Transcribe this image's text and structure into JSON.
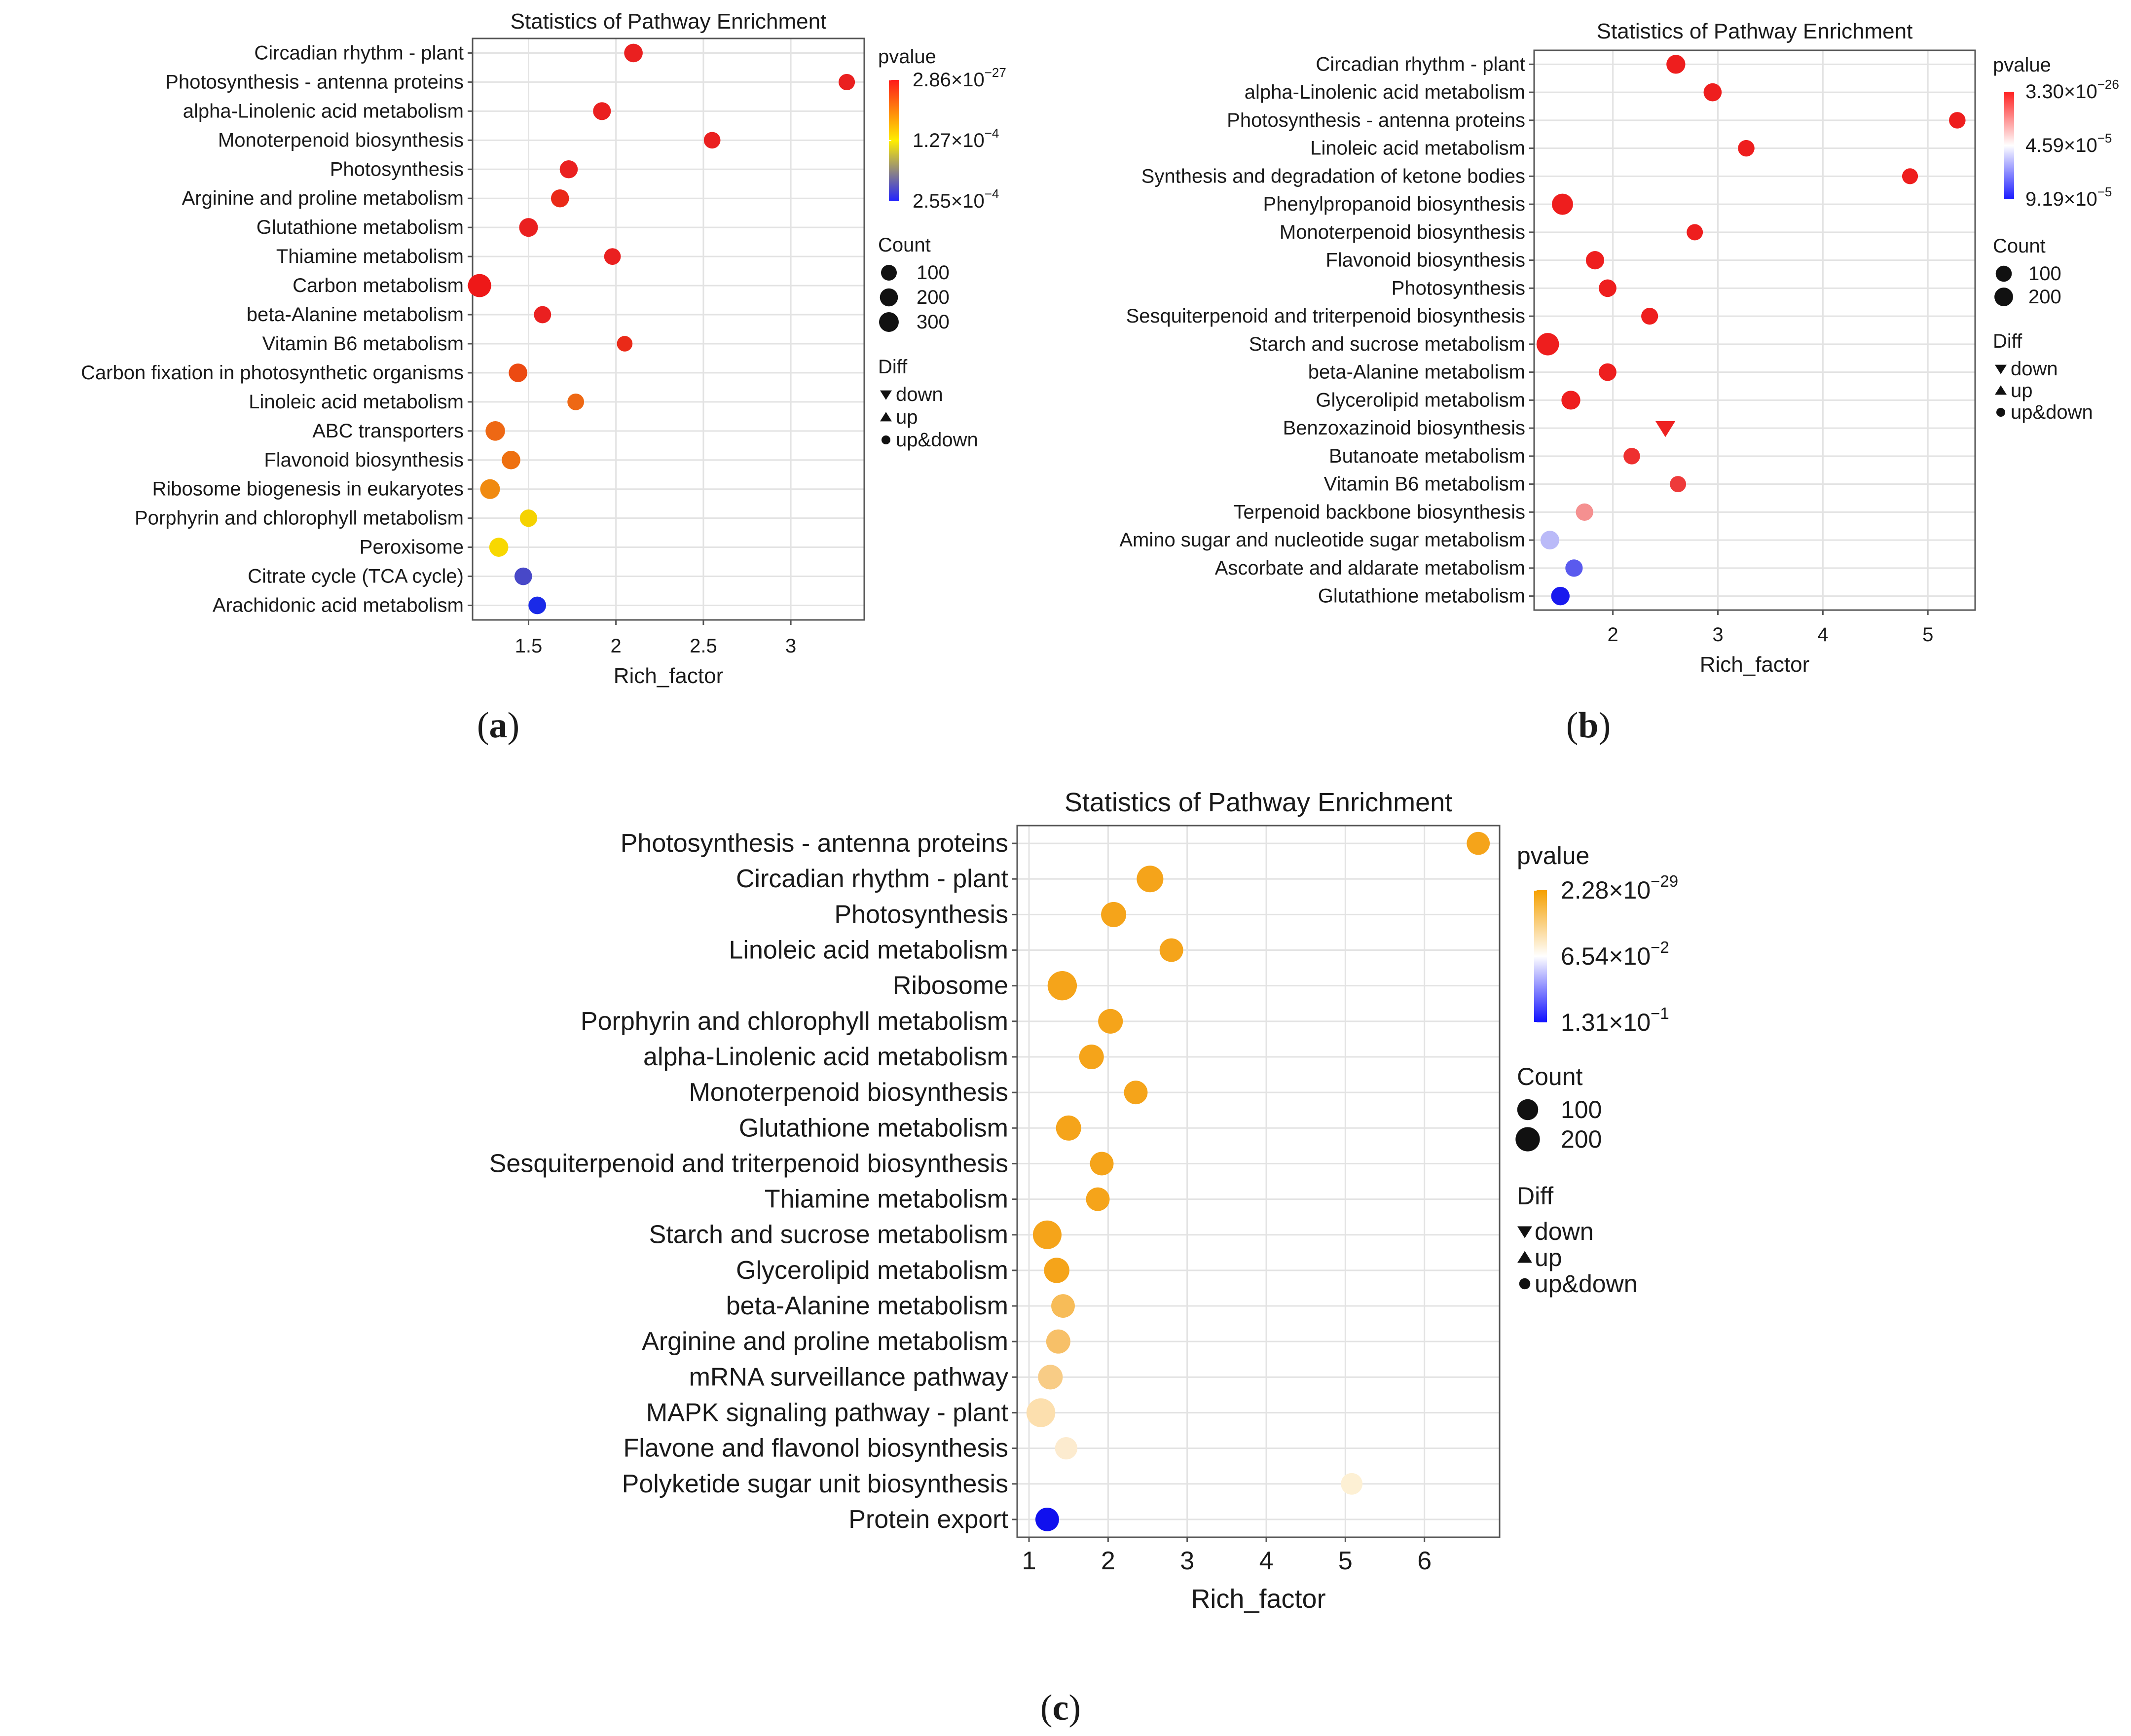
{
  "chart_data": [
    {
      "type": "scatter",
      "panel_caption": "a",
      "title": "Statistics of Pathway Enrichment",
      "xlabel": "Rich_factor",
      "ylabel": "",
      "xlim": [
        1.18,
        3.42
      ],
      "xticks": [
        1.5,
        2,
        2.5,
        3
      ],
      "xtick_labels": [
        "1.5",
        "2",
        "2.5",
        "3"
      ],
      "grid": true,
      "legend_position": "right",
      "color_legend": {
        "title": "pvalue",
        "labels": [
          "2.86×10",
          "1.27×10",
          "2.55×10"
        ],
        "exponents": [
          "−27",
          "−4",
          "−4"
        ],
        "colors": [
          "#ff1a1a",
          "#ffee00",
          "#2222ff"
        ]
      },
      "size_legend": {
        "title": "Count",
        "labels": [
          "100",
          "200",
          "300"
        ],
        "values": [
          100,
          200,
          300
        ]
      },
      "shape_legend": {
        "title": "Diff",
        "labels": [
          "down",
          "up",
          "up&down"
        ],
        "symbols": [
          "▼",
          "▲",
          "●"
        ]
      },
      "count_range": [
        30,
        330
      ],
      "points": [
        {
          "pathway": "Circadian rhythm - plant",
          "rich_factor": 2.1,
          "count": 100,
          "color": "#ea2020",
          "diff": "up&down"
        },
        {
          "pathway": "Photosynthesis - antenna proteins",
          "rich_factor": 3.32,
          "count": 50,
          "color": "#ea2020",
          "diff": "up&down"
        },
        {
          "pathway": "alpha-Linolenic acid metabolism",
          "rich_factor": 1.92,
          "count": 80,
          "color": "#ea2020",
          "diff": "up&down"
        },
        {
          "pathway": "Monoterpenoid biosynthesis",
          "rich_factor": 2.55,
          "count": 55,
          "color": "#ea2020",
          "diff": "up&down"
        },
        {
          "pathway": "Photosynthesis",
          "rich_factor": 1.73,
          "count": 85,
          "color": "#ea2020",
          "diff": "up&down"
        },
        {
          "pathway": "Arginine and proline metabolism",
          "rich_factor": 1.68,
          "count": 85,
          "color": "#ea2a18",
          "diff": "up&down"
        },
        {
          "pathway": "Glutathione metabolism",
          "rich_factor": 1.5,
          "count": 105,
          "color": "#ea2020",
          "diff": "up&down"
        },
        {
          "pathway": "Thiamine metabolism",
          "rich_factor": 1.98,
          "count": 55,
          "color": "#ea2020",
          "diff": "up&down"
        },
        {
          "pathway": "Carbon metabolism",
          "rich_factor": 1.22,
          "count": 300,
          "color": "#ee1818",
          "diff": "up&down"
        },
        {
          "pathway": "beta-Alanine metabolism",
          "rich_factor": 1.58,
          "count": 65,
          "color": "#ea2020",
          "diff": "up&down"
        },
        {
          "pathway": "Vitamin B6 metabolism",
          "rich_factor": 2.05,
          "count": 40,
          "color": "#ea2a18",
          "diff": "up&down"
        },
        {
          "pathway": "Carbon fixation in photosynthetic organisms",
          "rich_factor": 1.44,
          "count": 100,
          "color": "#ec4a12",
          "diff": "up&down"
        },
        {
          "pathway": "Linoleic acid metabolism",
          "rich_factor": 1.77,
          "count": 55,
          "color": "#ee6814",
          "diff": "up&down"
        },
        {
          "pathway": "ABC transporters",
          "rich_factor": 1.31,
          "count": 130,
          "color": "#ee6814",
          "diff": "up&down"
        },
        {
          "pathway": "Flavonoid biosynthesis",
          "rich_factor": 1.4,
          "count": 100,
          "color": "#ee7010",
          "diff": "up&down"
        },
        {
          "pathway": "Ribosome biogenesis in eukaryotes",
          "rich_factor": 1.28,
          "count": 140,
          "color": "#f08a10",
          "diff": "up&down"
        },
        {
          "pathway": "Porphyrin and chlorophyll metabolism",
          "rich_factor": 1.5,
          "count": 70,
          "color": "#f5d200",
          "diff": "up&down"
        },
        {
          "pathway": "Peroxisome",
          "rich_factor": 1.33,
          "count": 115,
          "color": "#f8d800",
          "diff": "up&down"
        },
        {
          "pathway": "Citrate cycle (TCA cycle)",
          "rich_factor": 1.47,
          "count": 75,
          "color": "#4848c8",
          "diff": "up&down"
        },
        {
          "pathway": "Arachidonic acid metabolism",
          "rich_factor": 1.55,
          "count": 75,
          "color": "#1a2ae8",
          "diff": "up&down"
        }
      ]
    },
    {
      "type": "scatter",
      "panel_caption": "b",
      "title": "Statistics of Pathway Enrichment",
      "xlabel": "Rich_factor",
      "ylabel": "",
      "xlim": [
        1.25,
        5.45
      ],
      "xticks": [
        2,
        3,
        4,
        5
      ],
      "xtick_labels": [
        "2",
        "3",
        "4",
        "5"
      ],
      "grid": true,
      "legend_position": "right",
      "color_legend": {
        "title": "pvalue",
        "labels": [
          "3.30×10",
          "4.59×10",
          "9.19×10"
        ],
        "exponents": [
          "−26",
          "−5",
          "−5"
        ],
        "colors": [
          "#ff2020",
          "#ffffff",
          "#1a1aff"
        ]
      },
      "size_legend": {
        "title": "Count",
        "labels": [
          "100",
          "200"
        ],
        "values": [
          100,
          200
        ]
      },
      "shape_legend": {
        "title": "Diff",
        "labels": [
          "down",
          "up",
          "up&down"
        ],
        "symbols": [
          "▼",
          "▲",
          "●"
        ]
      },
      "count_range": [
        20,
        230
      ],
      "points": [
        {
          "pathway": "Circadian rhythm - plant",
          "rich_factor": 2.6,
          "count": 100,
          "color": "#ee1e1e",
          "diff": "up&down"
        },
        {
          "pathway": "alpha-Linolenic acid metabolism",
          "rich_factor": 2.95,
          "count": 80,
          "color": "#ee1e1e",
          "diff": "up&down"
        },
        {
          "pathway": "Photosynthesis - antenna proteins",
          "rich_factor": 5.28,
          "count": 50,
          "color": "#ee1e1e",
          "diff": "up&down"
        },
        {
          "pathway": "Linoleic acid metabolism",
          "rich_factor": 3.27,
          "count": 50,
          "color": "#ee1e1e",
          "diff": "up&down"
        },
        {
          "pathway": "Synthesis and degradation of ketone bodies",
          "rich_factor": 4.83,
          "count": 40,
          "color": "#ee1e1e",
          "diff": "up&down"
        },
        {
          "pathway": "Phenylpropanoid biosynthesis",
          "rich_factor": 1.52,
          "count": 170,
          "color": "#ee1e1e",
          "diff": "up&down"
        },
        {
          "pathway": "Monoterpenoid biosynthesis",
          "rich_factor": 2.78,
          "count": 45,
          "color": "#ee1e1e",
          "diff": "up&down"
        },
        {
          "pathway": "Flavonoid biosynthesis",
          "rich_factor": 1.83,
          "count": 85,
          "color": "#ee1e1e",
          "diff": "up&down"
        },
        {
          "pathway": "Photosynthesis",
          "rich_factor": 1.95,
          "count": 70,
          "color": "#ee1e1e",
          "diff": "up&down"
        },
        {
          "pathway": "Sesquiterpenoid and triterpenoid biosynthesis",
          "rich_factor": 2.35,
          "count": 55,
          "color": "#ee1e1e",
          "diff": "up&down"
        },
        {
          "pathway": "Starch and sucrose metabolism",
          "rich_factor": 1.38,
          "count": 220,
          "color": "#ee1e1e",
          "diff": "up&down"
        },
        {
          "pathway": "beta-Alanine metabolism",
          "rich_factor": 1.95,
          "count": 70,
          "color": "#ee1e1e",
          "diff": "up&down"
        },
        {
          "pathway": "Glycerolipid metabolism",
          "rich_factor": 1.6,
          "count": 100,
          "color": "#ee1e1e",
          "diff": "up&down"
        },
        {
          "pathway": "Benzoxazinoid biosynthesis",
          "rich_factor": 2.5,
          "count": 40,
          "color": "#ee2222",
          "diff": "down"
        },
        {
          "pathway": "Butanoate metabolism",
          "rich_factor": 2.18,
          "count": 50,
          "color": "#ee3030",
          "diff": "up&down"
        },
        {
          "pathway": "Vitamin B6 metabolism",
          "rich_factor": 2.62,
          "count": 45,
          "color": "#ee3a3a",
          "diff": "up&down"
        },
        {
          "pathway": "Terpenoid backbone biosynthesis",
          "rich_factor": 1.73,
          "count": 65,
          "color": "#f59090",
          "diff": "up&down"
        },
        {
          "pathway": "Amino sugar and nucleotide sugar metabolism",
          "rich_factor": 1.4,
          "count": 95,
          "color": "#babaf8",
          "diff": "up&down"
        },
        {
          "pathway": "Ascorbate and aldarate metabolism",
          "rich_factor": 1.63,
          "count": 65,
          "color": "#5a5aee",
          "diff": "up&down"
        },
        {
          "pathway": "Glutathione metabolism",
          "rich_factor": 1.5,
          "count": 90,
          "color": "#1a1aee",
          "diff": "up&down"
        }
      ]
    },
    {
      "type": "scatter",
      "panel_caption": "c",
      "title": "Statistics of Pathway Enrichment",
      "xlabel": "Rich_factor",
      "ylabel": "",
      "xlim": [
        0.85,
        6.95
      ],
      "xticks": [
        1,
        2,
        3,
        4,
        5,
        6
      ],
      "xtick_labels": [
        "1",
        "2",
        "3",
        "4",
        "5",
        "6"
      ],
      "grid": true,
      "legend_position": "right",
      "color_legend": {
        "title": "pvalue",
        "labels": [
          "2.28×10",
          "6.54×10",
          "1.31×10"
        ],
        "exponents": [
          "−29",
          "−2",
          "−1"
        ],
        "colors": [
          "#f5a000",
          "#ffffff",
          "#1010ff"
        ]
      },
      "size_legend": {
        "title": "Count",
        "labels": [
          "100",
          "200"
        ],
        "values": [
          100,
          200
        ]
      },
      "shape_legend": {
        "title": "Diff",
        "labels": [
          "down",
          "up",
          "up&down"
        ],
        "symbols": [
          "▼",
          "▲",
          "●"
        ]
      },
      "count_range": [
        20,
        230
      ],
      "points": [
        {
          "pathway": "Photosynthesis - antenna proteins",
          "rich_factor": 6.68,
          "count": 70,
          "color": "#f5a41a",
          "diff": "up&down"
        },
        {
          "pathway": "Circadian rhythm - plant",
          "rich_factor": 2.53,
          "count": 145,
          "color": "#f5a41a",
          "diff": "up&down"
        },
        {
          "pathway": "Photosynthesis",
          "rich_factor": 2.07,
          "count": 110,
          "color": "#f5a41a",
          "diff": "up&down"
        },
        {
          "pathway": "Linoleic acid metabolism",
          "rich_factor": 2.8,
          "count": 80,
          "color": "#f5a41a",
          "diff": "up&down"
        },
        {
          "pathway": "Ribosome",
          "rich_factor": 1.42,
          "count": 220,
          "color": "#f5a41a",
          "diff": "up&down"
        },
        {
          "pathway": "Porphyrin and chlorophyll metabolism",
          "rich_factor": 2.03,
          "count": 100,
          "color": "#f5a41a",
          "diff": "up&down"
        },
        {
          "pathway": "alpha-Linolenic acid metabolism",
          "rich_factor": 1.79,
          "count": 100,
          "color": "#f5a41a",
          "diff": "up&down"
        },
        {
          "pathway": "Monoterpenoid biosynthesis",
          "rich_factor": 2.35,
          "count": 80,
          "color": "#f5a41a",
          "diff": "up&down"
        },
        {
          "pathway": "Glutathione metabolism",
          "rich_factor": 1.5,
          "count": 110,
          "color": "#f5a41a",
          "diff": "up&down"
        },
        {
          "pathway": "Sesquiterpenoid and triterpenoid biosynthesis",
          "rich_factor": 1.92,
          "count": 80,
          "color": "#f5a41a",
          "diff": "up&down"
        },
        {
          "pathway": "Thiamine metabolism",
          "rich_factor": 1.87,
          "count": 80,
          "color": "#f5a41a",
          "diff": "up&down"
        },
        {
          "pathway": "Starch and sucrose metabolism",
          "rich_factor": 1.23,
          "count": 200,
          "color": "#f5a41a",
          "diff": "up&down"
        },
        {
          "pathway": "Glycerolipid metabolism",
          "rich_factor": 1.35,
          "count": 115,
          "color": "#f5a41a",
          "diff": "up&down"
        },
        {
          "pathway": "beta-Alanine metabolism",
          "rich_factor": 1.43,
          "count": 80,
          "color": "#f7bc58",
          "diff": "up&down"
        },
        {
          "pathway": "Arginine and proline metabolism",
          "rich_factor": 1.37,
          "count": 90,
          "color": "#f7c068",
          "diff": "up&down"
        },
        {
          "pathway": "mRNA surveillance pathway",
          "rich_factor": 1.27,
          "count": 100,
          "color": "#f8cc86",
          "diff": "up&down"
        },
        {
          "pathway": "MAPK signaling pathway - plant",
          "rich_factor": 1.15,
          "count": 205,
          "color": "#fcdfae",
          "diff": "up&down"
        },
        {
          "pathway": "Flavone and flavonol biosynthesis",
          "rich_factor": 1.47,
          "count": 60,
          "color": "#fcebcf",
          "diff": "up&down"
        },
        {
          "pathway": "Polyketide sugar unit biosynthesis",
          "rich_factor": 5.08,
          "count": 50,
          "color": "#fdf0d4",
          "diff": "up&down"
        },
        {
          "pathway": "Protein export",
          "rich_factor": 1.23,
          "count": 80,
          "color": "#1010ee",
          "diff": "up&down"
        }
      ]
    }
  ]
}
